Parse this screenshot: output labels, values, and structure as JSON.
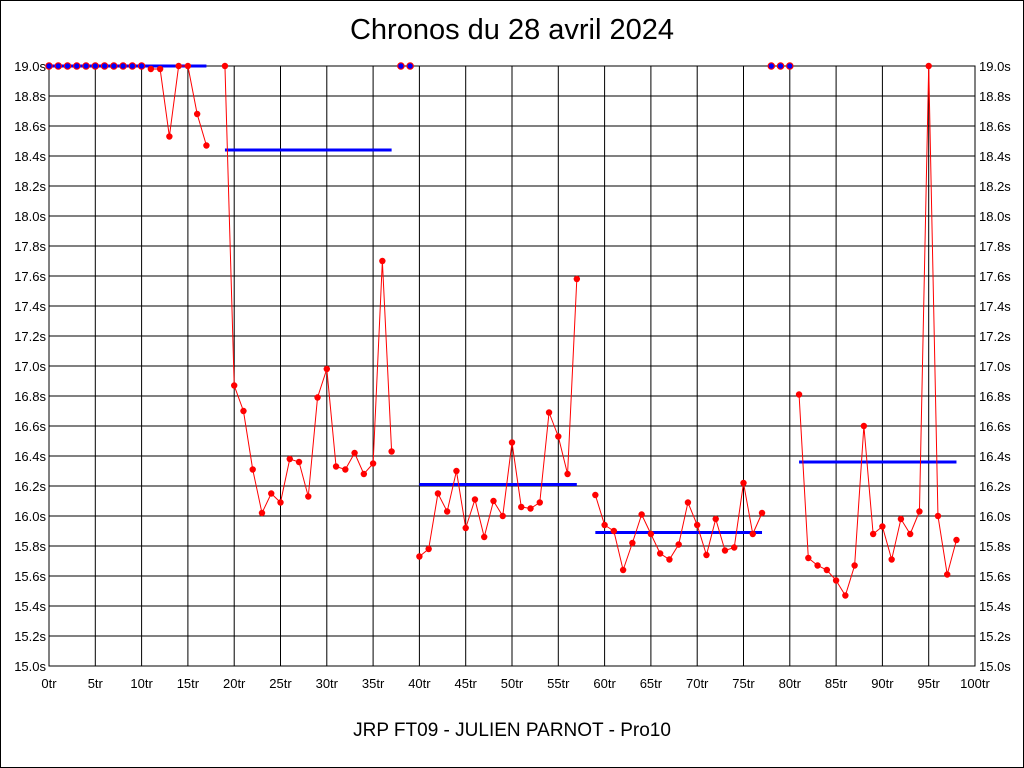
{
  "chart_data": {
    "type": "line",
    "title": "Chronos du 28 avril 2024",
    "footer": "JRP FT09 - JULIEN PARNOT - Pro10",
    "xlabel": "",
    "ylabel": "",
    "xlim": [
      0,
      100
    ],
    "ylim": [
      15.0,
      19.0
    ],
    "x_ticks": [
      0,
      5,
      10,
      15,
      20,
      25,
      30,
      35,
      40,
      45,
      50,
      55,
      60,
      65,
      70,
      75,
      80,
      85,
      90,
      95,
      100
    ],
    "x_tick_labels": [
      "0tr",
      "5tr",
      "10tr",
      "15tr",
      "20tr",
      "25tr",
      "30tr",
      "35tr",
      "40tr",
      "45tr",
      "50tr",
      "55tr",
      "60tr",
      "65tr",
      "70tr",
      "75tr",
      "80tr",
      "85tr",
      "90tr",
      "95tr",
      "100tr"
    ],
    "y_ticks": [
      15.0,
      15.2,
      15.4,
      15.6,
      15.8,
      16.0,
      16.2,
      16.4,
      16.6,
      16.8,
      17.0,
      17.2,
      17.4,
      17.6,
      17.8,
      18.0,
      18.2,
      18.4,
      18.6,
      18.8,
      19.0
    ],
    "y_tick_labels": [
      "15.0s",
      "15.2s",
      "15.4s",
      "15.6s",
      "15.8s",
      "16.0s",
      "16.2s",
      "16.4s",
      "16.6s",
      "16.8s",
      "17.0s",
      "17.2s",
      "17.4s",
      "17.6s",
      "17.8s",
      "18.0s",
      "18.2s",
      "18.4s",
      "18.6s",
      "18.8s",
      "19.0s"
    ],
    "grid": true,
    "colors": {
      "laps": "#ff0000",
      "capped": "#0000ff",
      "average": "#0000ff",
      "grid": "#000000"
    },
    "laps": [
      {
        "x": 11,
        "y": 18.98
      },
      {
        "x": 12,
        "y": 18.98
      },
      {
        "x": 13,
        "y": 18.53
      },
      {
        "x": 14,
        "y": 19.0
      },
      {
        "x": 15,
        "y": 19.0
      },
      {
        "x": 16,
        "y": 18.68
      },
      {
        "x": 17,
        "y": 18.47
      },
      {
        "x": 19,
        "y": 19.0
      },
      {
        "x": 20,
        "y": 16.87
      },
      {
        "x": 21,
        "y": 16.7
      },
      {
        "x": 22,
        "y": 16.31
      },
      {
        "x": 23,
        "y": 16.02
      },
      {
        "x": 24,
        "y": 16.15
      },
      {
        "x": 25,
        "y": 16.09
      },
      {
        "x": 26,
        "y": 16.38
      },
      {
        "x": 27,
        "y": 16.36
      },
      {
        "x": 28,
        "y": 16.13
      },
      {
        "x": 29,
        "y": 16.79
      },
      {
        "x": 30,
        "y": 16.98
      },
      {
        "x": 31,
        "y": 16.33
      },
      {
        "x": 32,
        "y": 16.31
      },
      {
        "x": 33,
        "y": 16.42
      },
      {
        "x": 34,
        "y": 16.28
      },
      {
        "x": 35,
        "y": 16.35
      },
      {
        "x": 36,
        "y": 17.7
      },
      {
        "x": 37,
        "y": 16.43
      },
      {
        "x": 40,
        "y": 15.73
      },
      {
        "x": 41,
        "y": 15.78
      },
      {
        "x": 42,
        "y": 16.15
      },
      {
        "x": 43,
        "y": 16.03
      },
      {
        "x": 44,
        "y": 16.3
      },
      {
        "x": 45,
        "y": 15.92
      },
      {
        "x": 46,
        "y": 16.11
      },
      {
        "x": 47,
        "y": 15.86
      },
      {
        "x": 48,
        "y": 16.1
      },
      {
        "x": 49,
        "y": 16.0
      },
      {
        "x": 50,
        "y": 16.49
      },
      {
        "x": 51,
        "y": 16.06
      },
      {
        "x": 52,
        "y": 16.05
      },
      {
        "x": 53,
        "y": 16.09
      },
      {
        "x": 54,
        "y": 16.69
      },
      {
        "x": 55,
        "y": 16.53
      },
      {
        "x": 56,
        "y": 16.28
      },
      {
        "x": 57,
        "y": 17.58
      },
      {
        "x": 59,
        "y": 16.14
      },
      {
        "x": 60,
        "y": 15.94
      },
      {
        "x": 61,
        "y": 15.9
      },
      {
        "x": 62,
        "y": 15.64
      },
      {
        "x": 63,
        "y": 15.82
      },
      {
        "x": 64,
        "y": 16.01
      },
      {
        "x": 65,
        "y": 15.88
      },
      {
        "x": 66,
        "y": 15.75
      },
      {
        "x": 67,
        "y": 15.71
      },
      {
        "x": 68,
        "y": 15.81
      },
      {
        "x": 69,
        "y": 16.09
      },
      {
        "x": 70,
        "y": 15.94
      },
      {
        "x": 71,
        "y": 15.74
      },
      {
        "x": 72,
        "y": 15.98
      },
      {
        "x": 73,
        "y": 15.77
      },
      {
        "x": 74,
        "y": 15.79
      },
      {
        "x": 75,
        "y": 16.22
      },
      {
        "x": 76,
        "y": 15.88
      },
      {
        "x": 77,
        "y": 16.02
      },
      {
        "x": 81,
        "y": 16.81
      },
      {
        "x": 82,
        "y": 15.72
      },
      {
        "x": 83,
        "y": 15.67
      },
      {
        "x": 84,
        "y": 15.64
      },
      {
        "x": 85,
        "y": 15.57
      },
      {
        "x": 86,
        "y": 15.47
      },
      {
        "x": 87,
        "y": 15.67
      },
      {
        "x": 88,
        "y": 16.6
      },
      {
        "x": 89,
        "y": 15.88
      },
      {
        "x": 90,
        "y": 15.93
      },
      {
        "x": 91,
        "y": 15.71
      },
      {
        "x": 92,
        "y": 15.98
      },
      {
        "x": 93,
        "y": 15.88
      },
      {
        "x": 94,
        "y": 16.03
      },
      {
        "x": 95,
        "y": 19.0
      },
      {
        "x": 96,
        "y": 16.0
      },
      {
        "x": 97,
        "y": 15.61
      },
      {
        "x": 98,
        "y": 15.84
      }
    ],
    "capped_laps_x": [
      0,
      1,
      2,
      3,
      4,
      5,
      6,
      7,
      8,
      9,
      10,
      38,
      39,
      78,
      79,
      80
    ],
    "capped_value": 19.0,
    "averages": [
      {
        "x0": 0,
        "x1": 17,
        "y": 19.0
      },
      {
        "x0": 19,
        "x1": 37,
        "y": 18.44
      },
      {
        "x0": 40,
        "x1": 57,
        "y": 16.21
      },
      {
        "x0": 59,
        "x1": 77,
        "y": 15.89
      },
      {
        "x0": 81,
        "x1": 98,
        "y": 16.36
      }
    ]
  }
}
